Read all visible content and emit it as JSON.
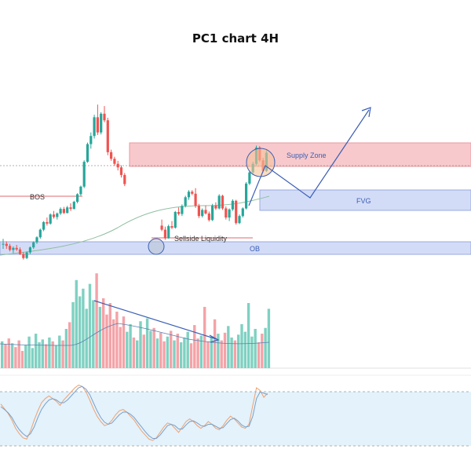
{
  "title": "PC1 chart 4H",
  "colors": {
    "bull": "#26a69a",
    "bear": "#ef5350",
    "bull_vol": "#7fd1c2",
    "bear_vol": "#f4a3a8",
    "zone_supply": "#f8c9cc",
    "zone_blue": "#d3dcf7",
    "arrow": "#3b5fb5",
    "ma": "#8fbfa0"
  },
  "annotations": {
    "bos": "BOS",
    "supply_zone": "Supply Zone",
    "fvg": "FVG",
    "sellside_liquidity": "Sellside Liquidity",
    "ob": "OB"
  },
  "chart_data": [
    {
      "type": "candlestick",
      "title": "PC1 chart 4H",
      "candles": [
        [
          9,
          10,
          8,
          9
        ],
        [
          9,
          9.5,
          8,
          8.6
        ],
        [
          8.6,
          9,
          7.5,
          7.8
        ],
        [
          7.8,
          8.5,
          7.2,
          8.2
        ],
        [
          8.2,
          8.8,
          7.6,
          7.9
        ],
        [
          7.9,
          8.3,
          6.8,
          7
        ],
        [
          7,
          7.4,
          5.9,
          6.2
        ],
        [
          6.2,
          7.5,
          6,
          7.3
        ],
        [
          7.3,
          8.5,
          7,
          8.3
        ],
        [
          8.3,
          9.5,
          8,
          9.3
        ],
        [
          9.3,
          10.5,
          9,
          10.3
        ],
        [
          10.3,
          12,
          10,
          11.8
        ],
        [
          11.8,
          13.5,
          11.5,
          13.3
        ],
        [
          13.3,
          14.2,
          12.6,
          13
        ],
        [
          13,
          15,
          12.8,
          14.8
        ],
        [
          14.8,
          15.5,
          14,
          14.3
        ],
        [
          14.3,
          15.2,
          13.8,
          15
        ],
        [
          15,
          16.2,
          14.7,
          15.9
        ],
        [
          15.9,
          16.3,
          14.9,
          15.1
        ],
        [
          15.1,
          16.5,
          15,
          16.2
        ],
        [
          16.2,
          17,
          15.5,
          15.9
        ],
        [
          15.9,
          17.5,
          15.8,
          17.3
        ],
        [
          17.3,
          19,
          17,
          18.8
        ],
        [
          18.8,
          20.5,
          18.5,
          20.3
        ],
        [
          20.3,
          25.5,
          20,
          25.2
        ],
        [
          25.2,
          29,
          25,
          28.7
        ],
        [
          28.7,
          31,
          27.8,
          30.3
        ],
        [
          30.3,
          34.5,
          29.8,
          34
        ],
        [
          34,
          36.5,
          30.5,
          31
        ],
        [
          31,
          35,
          30.6,
          34.7
        ],
        [
          34.7,
          36.2,
          33,
          33.4
        ],
        [
          33.4,
          33.9,
          26.5,
          27.1
        ],
        [
          27.1,
          27.6,
          25.4,
          25.8
        ],
        [
          25.8,
          26.2,
          24.4,
          24.8
        ],
        [
          24.8,
          25.4,
          23.5,
          24.1
        ],
        [
          24.1,
          24.5,
          22.1,
          22.6
        ],
        [
          22.6,
          23,
          20.4,
          20.8
        ],
        [
          null,
          null,
          null,
          null
        ],
        [
          null,
          null,
          null,
          null
        ],
        [
          null,
          null,
          null,
          null
        ],
        [
          null,
          null,
          null,
          null
        ],
        [
          null,
          null,
          null,
          null
        ],
        [
          null,
          null,
          null,
          null
        ],
        [
          null,
          null,
          null,
          null
        ],
        [
          null,
          null,
          null,
          null
        ],
        [
          null,
          null,
          null,
          null
        ],
        [
          null,
          null,
          null,
          null
        ],
        [
          12.6,
          13.8,
          11.5,
          11.8
        ],
        [
          11.8,
          12.4,
          9.8,
          10.1
        ],
        [
          10.1,
          12.8,
          10,
          12.5
        ],
        [
          12.5,
          13.5,
          11.9,
          12.2
        ],
        [
          12.2,
          15.5,
          12,
          15.3
        ],
        [
          15.3,
          16.2,
          14.6,
          14.9
        ],
        [
          14.9,
          16.8,
          14.5,
          16.5
        ],
        [
          16.5,
          18.5,
          16.2,
          18.2
        ],
        [
          18.2,
          19.6,
          17.7,
          19.3
        ],
        [
          19.3,
          19.6,
          18.6,
          18.9
        ],
        [
          18.9,
          20,
          16.1,
          16.5
        ],
        [
          16.5,
          16.9,
          14.1,
          14.5
        ],
        [
          14.5,
          16,
          14.2,
          15.7
        ],
        [
          15.7,
          16.6,
          14.8,
          15
        ],
        [
          15,
          15.4,
          13.4,
          13.7
        ],
        [
          13.7,
          16.9,
          13.5,
          16.6
        ],
        [
          16.6,
          17.2,
          15.7,
          16
        ],
        [
          16,
          18.8,
          15.8,
          18.5
        ],
        [
          18.5,
          18.7,
          15.7,
          16
        ],
        [
          16,
          16.4,
          13.8,
          14.2
        ],
        [
          14.2,
          16,
          13.5,
          15.8
        ],
        [
          15.8,
          17.8,
          15.5,
          17.5
        ],
        [
          17.5,
          17.7,
          12.8,
          13.1
        ],
        [
          13.1,
          14.8,
          12.9,
          14.5
        ],
        [
          14.5,
          16.2,
          14.2,
          16
        ],
        [
          16,
          21.2,
          15.8,
          20.9
        ],
        [
          20.9,
          23.4,
          20.6,
          23.1
        ],
        [
          23.1,
          25.2,
          22.6,
          24.8
        ],
        [
          24.8,
          28.4,
          24.5,
          28
        ],
        [
          28,
          28.3,
          25.2,
          25.5
        ],
        [
          25.5,
          26,
          23.1,
          23.4
        ],
        [
          23.4,
          27.4,
          23.2,
          27
        ]
      ],
      "price_range": [
        6,
        37
      ]
    },
    {
      "type": "bar",
      "title": "",
      "series": [
        {
          "name": "",
          "values": [
            2.8,
            2.5,
            3.1,
            2.6,
            2.2,
            2.9,
            1.8,
            2.4,
            3.3,
            2.1,
            3.6,
            2.7,
            3,
            2.5,
            3.2,
            2.8,
            2.4,
            3.4,
            2.9,
            4.1,
            4.8,
            6.9,
            9.2,
            7.5,
            8.3,
            6.2,
            8.8,
            7.1,
            9.9,
            6.4,
            7.3,
            5.6,
            6.8,
            5.1,
            5.9,
            4.3,
            5.4,
            3.8,
            4.6,
            3.2,
            2.9,
            4.9,
            3.5,
            5.2,
            3.9,
            4.2,
            3.1,
            3.7,
            2.8,
            3.3,
            3.9,
            2.9,
            3.6,
            2.7,
            3.2,
            3.8,
            2.6,
            4.5,
            3.1,
            3.4,
            6.4,
            2.8,
            3.3,
            5.1,
            3.6,
            2.9,
            3.7,
            4.4,
            3.2,
            2.9,
            3.5,
            4.6,
            3.8,
            6.8,
            3.3,
            4.1,
            2.7,
            3.6,
            4.2,
            6.2
          ]
        }
      ],
      "ylim": [
        0,
        10
      ]
    },
    {
      "type": "line",
      "title": "",
      "series": [
        {
          "name": "",
          "values": [
            62,
            55,
            48,
            38,
            26,
            18,
            12,
            10,
            22,
            38,
            52,
            64,
            70,
            74,
            70,
            66,
            60,
            68,
            74,
            80,
            86,
            90,
            88,
            80,
            68,
            55,
            44,
            36,
            30,
            32,
            38,
            46,
            52,
            54,
            50,
            44,
            38,
            30,
            22,
            16,
            10,
            8,
            12,
            20,
            28,
            34,
            32,
            26,
            20,
            28,
            36,
            40,
            36,
            30,
            26,
            30,
            36,
            32,
            26,
            24,
            30,
            38,
            44,
            40,
            34,
            28,
            26,
            32,
            60,
            86,
            82,
            72,
            78
          ]
        },
        {
          "name": "",
          "values": [
            58,
            54,
            49,
            42,
            32,
            24,
            18,
            14,
            18,
            28,
            42,
            54,
            62,
            68,
            70,
            68,
            64,
            64,
            68,
            74,
            80,
            86,
            88,
            84,
            76,
            64,
            52,
            42,
            35,
            32,
            34,
            40,
            46,
            50,
            50,
            47,
            42,
            35,
            28,
            21,
            15,
            11,
            11,
            16,
            23,
            30,
            32,
            30,
            25,
            25,
            31,
            36,
            37,
            34,
            30,
            29,
            32,
            32,
            29,
            26,
            27,
            33,
            39,
            41,
            37,
            31,
            28,
            29,
            44,
            70,
            80,
            78,
            76
          ]
        }
      ],
      "ylim": [
        0,
        100
      ]
    }
  ]
}
